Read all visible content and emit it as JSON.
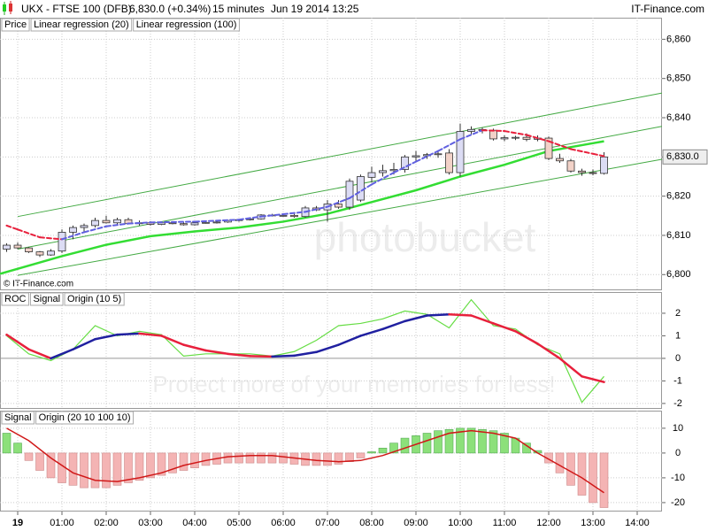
{
  "header": {
    "symbol": "UKX - FTSE 100 (DFB)",
    "price": "6,830.0 (+0.34%)",
    "interval": "15 minutes",
    "date": "Jun 19 2014 13:25",
    "brand": "IT-Finance.com"
  },
  "copyright": "© IT-Finance.com",
  "watermark": {
    "logo": "photobucket",
    "slogan": "Protect more of your memories for less!"
  },
  "chart_data": [
    {
      "type": "candlestick",
      "name": "Price",
      "x": [
        -0.25,
        0,
        0.25,
        0.5,
        0.75,
        1,
        1.25,
        1.5,
        1.75,
        2,
        2.25,
        2.5,
        2.75,
        3,
        3.25,
        3.5,
        3.75,
        4,
        4.25,
        4.5,
        4.75,
        5,
        5.25,
        5.5,
        5.75,
        6,
        6.25,
        6.5,
        6.75,
        7,
        7.25,
        7.5,
        7.75,
        8,
        8.25,
        8.5,
        8.75,
        9,
        9.25,
        9.5,
        9.75,
        10,
        10.25,
        10.5,
        10.75,
        11,
        11.25,
        11.5,
        11.75,
        12,
        12.25,
        12.5,
        12.75,
        13,
        13.25
      ],
      "open": [
        6806.5,
        6807.5,
        6806.8,
        6805.8,
        6805,
        6806,
        6810.8,
        6812,
        6812.5,
        6813.8,
        6813.2,
        6814,
        6813,
        6813.2,
        6812.8,
        6813.2,
        6813,
        6812.7,
        6813.2,
        6813.3,
        6813.4,
        6813.8,
        6814,
        6814.2,
        6815.2,
        6815,
        6815.1,
        6814.8,
        6817,
        6816.5,
        6818,
        6817.2,
        6819,
        6824.8,
        6826,
        6826.5,
        6826.8,
        6830,
        6830.3,
        6830.6,
        6831,
        6826,
        6836.5,
        6837,
        6836.8,
        6834.6,
        6834.9,
        6835,
        6834.5,
        6834.8,
        6829.6,
        6829,
        6826.4,
        6826,
        6825.8
      ],
      "high": [
        6808,
        6808.2,
        6807,
        6806,
        6806.5,
        6811.5,
        6812.5,
        6813,
        6814.5,
        6815,
        6814.5,
        6814.5,
        6813.8,
        6813.6,
        6813.5,
        6813.5,
        6813.3,
        6813.4,
        6813.5,
        6813.6,
        6814,
        6814.2,
        6814.5,
        6815.4,
        6815.5,
        6815.4,
        6815.5,
        6817.5,
        6817.5,
        6819,
        6819,
        6824.5,
        6825.5,
        6827.5,
        6828,
        6828.5,
        6830.5,
        6831.5,
        6831,
        6831.5,
        6832,
        6838.5,
        6837.8,
        6837.5,
        6837.2,
        6835.5,
        6835.4,
        6836,
        6835.5,
        6835.2,
        6830.8,
        6829.5,
        6827,
        6826.8,
        6831.2
      ],
      "low": [
        6805.8,
        6806.5,
        6805.5,
        6804.5,
        6804.8,
        6805.5,
        6809,
        6811,
        6812,
        6813,
        6812.8,
        6812.8,
        6812.5,
        6812.5,
        6812.6,
        6812.8,
        6812.5,
        6812.5,
        6813,
        6813,
        6813.2,
        6813.5,
        6813.8,
        6814,
        6814.8,
        6814.8,
        6814.5,
        6814.5,
        6816.2,
        6813.5,
        6816.8,
        6816.5,
        6818.5,
        6823.5,
        6825,
        6825.5,
        6826,
        6829,
        6829.5,
        6829.8,
        6825.5,
        6825,
        6835.8,
        6836,
        6834.2,
        6834,
        6834.3,
        6834,
        6834,
        6829.2,
        6828.5,
        6826,
        6825.2,
        6825.3,
        6825.5
      ],
      "close": [
        6807.5,
        6806.8,
        6805.8,
        6805,
        6806,
        6810.8,
        6812,
        6812.5,
        6813.8,
        6813.2,
        6814,
        6813,
        6813.2,
        6812.8,
        6813.2,
        6813,
        6812.7,
        6813.2,
        6813.3,
        6813.4,
        6813.8,
        6814,
        6814.2,
        6815.2,
        6815,
        6815.1,
        6814.8,
        6817,
        6816.5,
        6818,
        6817.2,
        6823.8,
        6825,
        6826,
        6826.5,
        6826.8,
        6830,
        6830.3,
        6830.6,
        6830.8,
        6826,
        6836.5,
        6837,
        6836.8,
        6834.6,
        6834.9,
        6835,
        6834.5,
        6834.8,
        6829.6,
        6829,
        6826.4,
        6826,
        6825.8,
        6830
      ],
      "up_color": "#dcdcf4",
      "down_color": "#f2d2c8",
      "series": [
        {
          "name": "Linear regression (20)",
          "color": "#e8203c",
          "up_color": "#6060e0",
          "dashed": true,
          "x": [
            -0.25,
            0,
            0.5,
            1,
            1.5,
            2,
            2.5,
            3,
            4,
            5,
            5.5,
            6,
            6.5,
            7,
            7.5,
            8,
            8.5,
            9,
            9.5,
            10,
            10.5,
            11,
            11.5,
            12,
            12.5,
            13,
            13.25
          ],
          "values": [
            6812.5,
            6811.5,
            6809.5,
            6809,
            6810.8,
            6812.3,
            6813,
            6813.3,
            6813.5,
            6814,
            6814.8,
            6815.4,
            6816,
            6817.3,
            6819.5,
            6823,
            6826,
            6828.8,
            6831.5,
            6834.5,
            6836.8,
            6836.6,
            6835.6,
            6834,
            6832,
            6830.8,
            6830.2
          ]
        },
        {
          "name": "Linear regression (100)",
          "color": "#33dd33",
          "x": [
            -0.4,
            1,
            2,
            3,
            4,
            5,
            6,
            7,
            8,
            9,
            10,
            11,
            12,
            13,
            13.25
          ],
          "values": [
            6800.2,
            6804.7,
            6807.6,
            6809.8,
            6811,
            6812,
            6813.5,
            6815.5,
            6818.5,
            6821.5,
            6825,
            6828,
            6831.5,
            6833.5,
            6834
          ]
        }
      ],
      "channels": [
        {
          "color": "#44aa44",
          "x": [
            0,
            14.56
          ],
          "values": [
            6814.8,
            6846.3
          ]
        },
        {
          "color": "#44aa44",
          "x": [
            0,
            14.56
          ],
          "values": [
            6806.5,
            6837.8
          ]
        },
        {
          "color": "#44aa44",
          "x": [
            0,
            14.56
          ],
          "values": [
            6799.8,
            6829.4
          ]
        }
      ],
      "last_label": {
        "value": 6830,
        "label": "6,830.0"
      },
      "xlim": [
        -0.4,
        14.56
      ],
      "ylim": [
        6796,
        6865.5
      ],
      "yticks": [
        {
          "value": 6860,
          "label": "6,860"
        },
        {
          "value": 6850,
          "label": "6,850"
        },
        {
          "value": 6840,
          "label": "6,840"
        },
        {
          "value": 6830,
          "label": "6,830"
        },
        {
          "value": 6820,
          "label": "6,820"
        },
        {
          "value": 6810,
          "label": "6,810"
        },
        {
          "value": 6800,
          "label": "6,800"
        }
      ],
      "grid": true
    },
    {
      "type": "line",
      "x": [
        -0.25,
        0.25,
        0.75,
        1.25,
        1.75,
        2.25,
        2.75,
        3.25,
        3.75,
        4.25,
        4.75,
        5.25,
        5.75,
        6.25,
        6.75,
        7.25,
        7.75,
        8.25,
        8.75,
        9.25,
        9.75,
        10.25,
        10.75,
        11.25,
        11.75,
        12.25,
        12.75,
        13.25
      ],
      "series": [
        {
          "name": "ROC",
          "color": "#66dd44",
          "values": [
            1.0,
            0.2,
            -0.1,
            0.4,
            1.45,
            1.0,
            1.2,
            1.05,
            0.1,
            0.2,
            0.2,
            0.2,
            0.1,
            0.3,
            0.8,
            1.45,
            1.55,
            1.75,
            2.1,
            1.95,
            1.35,
            2.6,
            1.45,
            1.3,
            0.6,
            0.2,
            -1.95,
            -0.8
          ]
        },
        {
          "name": "Signal",
          "color": "#e8203c",
          "up_color": "#2020a0",
          "values": [
            1.05,
            0.4,
            0,
            0.4,
            0.85,
            1.05,
            1.1,
            1.0,
            0.6,
            0.35,
            0.2,
            0.1,
            0.08,
            0.12,
            0.28,
            0.6,
            1.0,
            1.3,
            1.65,
            1.9,
            1.95,
            1.9,
            1.55,
            1.2,
            0.65,
            0,
            -0.8,
            -1.05
          ]
        }
      ],
      "study": "Origin (10 5)",
      "xlim": [
        -0.4,
        14.56
      ],
      "ylim": [
        -2.24,
        2.94
      ],
      "yticks": [
        2,
        1,
        0,
        -1,
        -2
      ],
      "grid": true
    },
    {
      "type": "bar",
      "x": [
        -0.25,
        0,
        0.25,
        0.5,
        0.75,
        1,
        1.25,
        1.5,
        1.75,
        2,
        2.25,
        2.5,
        2.75,
        3,
        3.25,
        3.5,
        3.75,
        4,
        4.25,
        4.5,
        4.75,
        5,
        5.25,
        5.5,
        5.75,
        6,
        6.25,
        6.5,
        6.75,
        7,
        7.25,
        7.5,
        7.75,
        8,
        8.25,
        8.5,
        8.75,
        9,
        9.25,
        9.5,
        9.75,
        10,
        10.25,
        10.5,
        10.75,
        11,
        11.25,
        11.5,
        11.75,
        12,
        12.25,
        12.5,
        12.75,
        13,
        13.25
      ],
      "values": [
        8,
        4,
        -3,
        -7,
        -10,
        -12,
        -13,
        -14,
        -14,
        -14,
        -13,
        -12,
        -11,
        -10,
        -9,
        -8,
        -7,
        -6,
        -5,
        -4.5,
        -4,
        -4,
        -4,
        -4,
        -4,
        -4,
        -4.5,
        -5,
        -5,
        -5,
        -4.5,
        -3.5,
        -2,
        0.5,
        2,
        4,
        6,
        7,
        8,
        9,
        9.5,
        10,
        10,
        9.5,
        9,
        8,
        6,
        4,
        1,
        -4,
        -8,
        -13,
        -17,
        -20,
        -22
      ],
      "positive_color": "#8ce07a",
      "negative_color": "#f4b4b4",
      "series": [
        {
          "name": "Signal",
          "color": "#d01818",
          "legend_color": "#f08090",
          "x": [
            -0.25,
            0.25,
            0.75,
            1.25,
            1.75,
            2.25,
            2.75,
            3.25,
            3.75,
            4.25,
            4.75,
            5.25,
            5.75,
            6.25,
            6.75,
            7.25,
            7.75,
            8.25,
            8.75,
            9.25,
            9.75,
            10.25,
            10.75,
            11.25,
            11.75,
            12.25,
            12.75,
            13.25
          ],
          "values": [
            10,
            5,
            -2,
            -8,
            -11,
            -11.5,
            -10,
            -8,
            -5,
            -3,
            -1.5,
            -1,
            -1,
            -2,
            -3,
            -3.5,
            -3,
            -1,
            2,
            5,
            8,
            9,
            8,
            6,
            0,
            -5,
            -10,
            -16
          ]
        }
      ],
      "study": "Origin (20 10 100 10)",
      "xlim": [
        -0.4,
        14.56
      ],
      "ylim": [
        -23.6,
        17.1
      ],
      "yticks": [
        10,
        0,
        -10,
        -20
      ],
      "grid": true,
      "xticks": [
        {
          "value": 0,
          "label": "19"
        },
        {
          "value": 1,
          "label": "01:00"
        },
        {
          "value": 2,
          "label": "02:00"
        },
        {
          "value": 3,
          "label": "03:00"
        },
        {
          "value": 4,
          "label": "04:00"
        },
        {
          "value": 5,
          "label": "05:00"
        },
        {
          "value": 6,
          "label": "06:00"
        },
        {
          "value": 7,
          "label": "07:00"
        },
        {
          "value": 8,
          "label": "08:00"
        },
        {
          "value": 9,
          "label": "09:00"
        },
        {
          "value": 10,
          "label": "10:00"
        },
        {
          "value": 11,
          "label": "11:00"
        },
        {
          "value": 12,
          "label": "12:00"
        },
        {
          "value": 13,
          "label": "13:00"
        },
        {
          "value": 14,
          "label": "14:00"
        }
      ]
    }
  ]
}
